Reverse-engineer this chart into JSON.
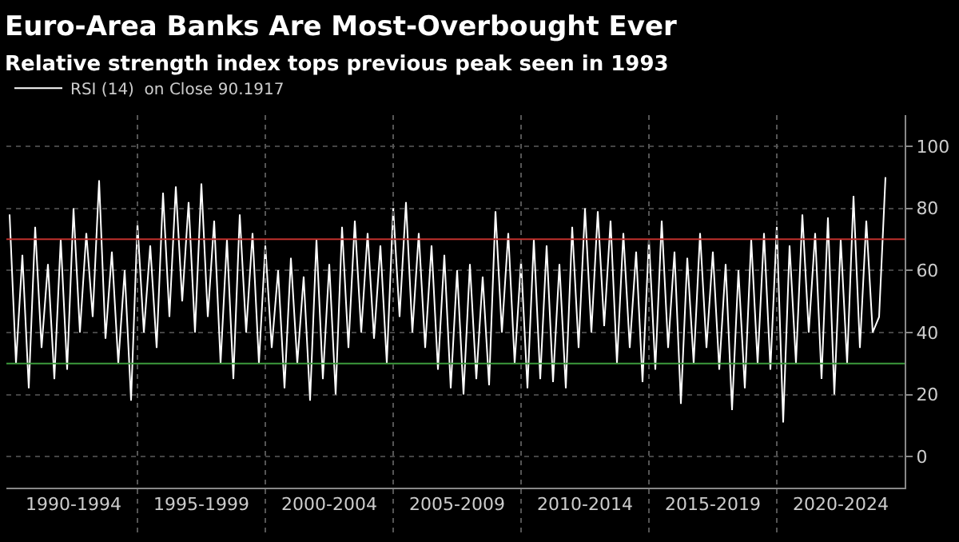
{
  "chart_data": {
    "type": "line",
    "title": "Euro-Area Banks Are Most-Overbought Ever",
    "subtitle": "Relative strength index tops previous peak seen in 1993",
    "categories": [
      null,
      null,
      null,
      null,
      null,
      null,
      null,
      null,
      null,
      null,
      "1990-1994",
      null,
      null,
      null,
      null,
      null,
      null,
      null,
      null,
      null,
      null,
      null,
      null,
      null,
      null,
      null,
      null,
      null,
      null,
      null,
      "1995-1999",
      null,
      null,
      null,
      null,
      null,
      null,
      null,
      null,
      null,
      null,
      null,
      null,
      null,
      null,
      null,
      null,
      null,
      null,
      null,
      "2000-2004",
      null,
      null,
      null,
      null,
      null,
      null,
      null,
      null,
      null,
      null,
      null,
      null,
      null,
      null,
      null,
      null,
      null,
      null,
      null,
      "2005-2009",
      null,
      null,
      null,
      null,
      null,
      null,
      null,
      null,
      null,
      null,
      null,
      null,
      null,
      null,
      null,
      null,
      null,
      null,
      null,
      "2010-2014",
      null,
      null,
      null,
      null,
      null,
      null,
      null,
      null,
      null,
      null,
      null,
      null,
      null,
      null,
      null,
      null,
      null,
      null,
      null,
      "2015-2019",
      null,
      null,
      null,
      null,
      null,
      null,
      null,
      null,
      null,
      null,
      null,
      null,
      null,
      null,
      null,
      null,
      null,
      null,
      null,
      "2020-2024",
      null,
      null,
      null,
      null,
      null,
      null,
      null
    ],
    "series": [
      {
        "name": "RSI (14)  on Close 90.1917",
        "color": "#ffffff",
        "values": [
          78,
          30,
          65,
          22,
          74,
          35,
          62,
          25,
          70,
          28,
          80,
          40,
          72,
          45,
          89,
          38,
          66,
          30,
          60,
          18,
          75,
          40,
          68,
          35,
          85,
          45,
          87,
          50,
          82,
          40,
          88,
          45,
          76,
          30,
          70,
          25,
          78,
          40,
          72,
          30,
          68,
          35,
          60,
          22,
          64,
          30,
          58,
          18,
          70,
          25,
          62,
          20,
          74,
          35,
          76,
          40,
          72,
          38,
          68,
          30,
          80,
          45,
          82,
          40,
          72,
          35,
          68,
          28,
          65,
          22,
          60,
          20,
          62,
          25,
          58,
          23,
          79,
          40,
          72,
          30,
          63,
          22,
          70,
          25,
          68,
          24,
          62,
          22,
          74,
          35,
          80,
          40,
          79,
          42,
          76,
          30,
          72,
          35,
          66,
          24,
          70,
          28,
          76,
          35,
          66,
          17,
          64,
          30,
          72,
          35,
          66,
          28,
          62,
          15,
          60,
          22,
          70,
          30,
          72,
          28,
          74,
          11,
          68,
          30,
          78,
          40,
          72,
          25,
          77,
          20,
          70,
          30,
          84,
          35,
          76,
          40,
          45,
          90
        ]
      }
    ],
    "ylim": [
      -10,
      110
    ],
    "yticks": [
      0,
      20,
      40,
      60,
      80,
      100
    ],
    "ref_lines": [
      {
        "axis": "y",
        "value": 70,
        "color": "#c0302c"
      },
      {
        "axis": "y",
        "value": 30,
        "color": "#3c9a3c"
      }
    ],
    "grid": true,
    "legend": "top left",
    "marker": "none",
    "line_style": "solid"
  }
}
